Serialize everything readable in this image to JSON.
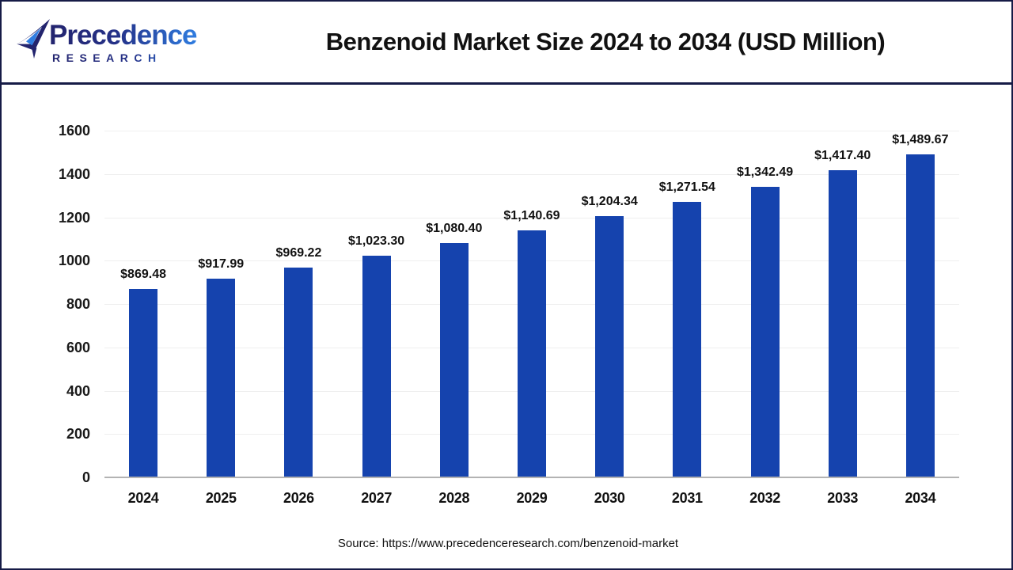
{
  "header": {
    "logo": {
      "line1": "Precedence",
      "line2": "RESEARCH"
    },
    "title": "Benzenoid Market Size 2024 to 2034 (USD Million)"
  },
  "footer": {
    "source": "Source: https://www.precedenceresearch.com/benzenoid-market"
  },
  "colors": {
    "bar": "#1543ae",
    "frame": "#161b46",
    "grid": "#efefef",
    "baseline": "#b3b3b3",
    "logo_navy": "#23246e",
    "logo_blue": "#2f7de1"
  },
  "chart_data": {
    "type": "bar",
    "title": "Benzenoid Market Size 2024 to 2034 (USD Million)",
    "categories": [
      "2024",
      "2025",
      "2026",
      "2027",
      "2028",
      "2029",
      "2030",
      "2031",
      "2032",
      "2033",
      "2034"
    ],
    "values": [
      869.48,
      917.99,
      969.22,
      1023.3,
      1080.4,
      1140.69,
      1204.34,
      1271.54,
      1342.49,
      1417.4,
      1489.67
    ],
    "value_labels": [
      "$869.48",
      "$917.99",
      "$969.22",
      "$1,023.30",
      "$1,080.40",
      "$1,140.69",
      "$1,204.34",
      "$1,271.54",
      "$1,342.49",
      "$1,417.40",
      "$1,489.67"
    ],
    "xlabel": "",
    "ylabel": "",
    "ylim": [
      0,
      1600
    ],
    "ytick_step": 200,
    "grid": true,
    "legend_position": "none",
    "bar_color": "#1543ae"
  }
}
